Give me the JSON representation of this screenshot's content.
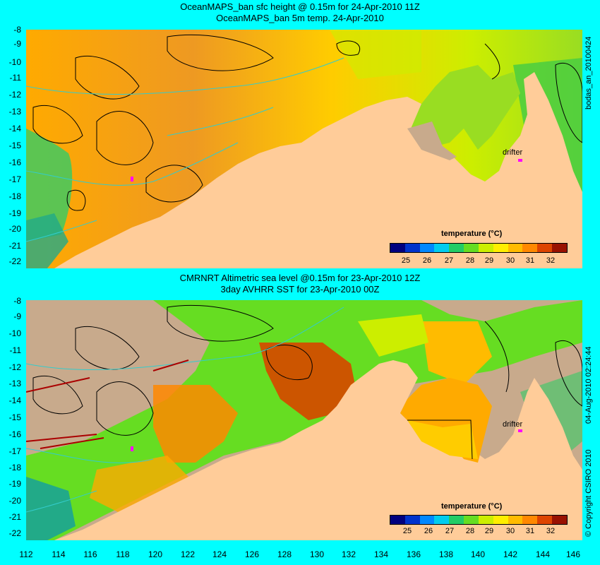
{
  "top_panel": {
    "title_line1": "OceanMAPS_ban sfc height @ 0.15m for 24-Apr-2010 11Z",
    "title_line2": "OceanMAPS_ban 5m temp. 24-Apr-2010",
    "side_label": "bodas_an_20100424",
    "drifter_label": "drifter",
    "legend_title": "temperature (°C)"
  },
  "bottom_panel": {
    "title_line1": "CMRNRT Altimetric sea level  @0.15m  for 23-Apr-2010 12Z",
    "title_line2": "3day AVHRR SST for 23-Apr-2010 00Z",
    "side_label": "04-Aug-2010 02:24:44",
    "copyright": "© Copyright CSIRO 2010",
    "drifter_label": "drifter",
    "legend_title": "temperature (°C)"
  },
  "axes": {
    "y_ticks": [
      "-8",
      "-9",
      "-10",
      "-11",
      "-12",
      "-13",
      "-14",
      "-15",
      "-16",
      "-17",
      "-18",
      "-19",
      "-20",
      "-21",
      "-22"
    ],
    "x_ticks": [
      "112",
      "114",
      "116",
      "118",
      "120",
      "122",
      "124",
      "126",
      "128",
      "130",
      "132",
      "134",
      "136",
      "138",
      "140",
      "142",
      "144",
      "146"
    ]
  },
  "legend": {
    "labels": [
      "25",
      "26",
      "27",
      "28",
      "29",
      "30",
      "31",
      "32"
    ],
    "colors": [
      "#00007f",
      "#0033cc",
      "#0088ff",
      "#00ccee",
      "#22cc66",
      "#66dd22",
      "#ccee00",
      "#ffee00",
      "#ffbb00",
      "#ff8800",
      "#dd4400",
      "#991100"
    ]
  },
  "colors": {
    "background": "#00ffff",
    "land": "#ffcc99",
    "no_data": "#c8aa8c",
    "contour": "#000000",
    "isobath": "#33cccc",
    "drifter": "#ff00ff"
  }
}
